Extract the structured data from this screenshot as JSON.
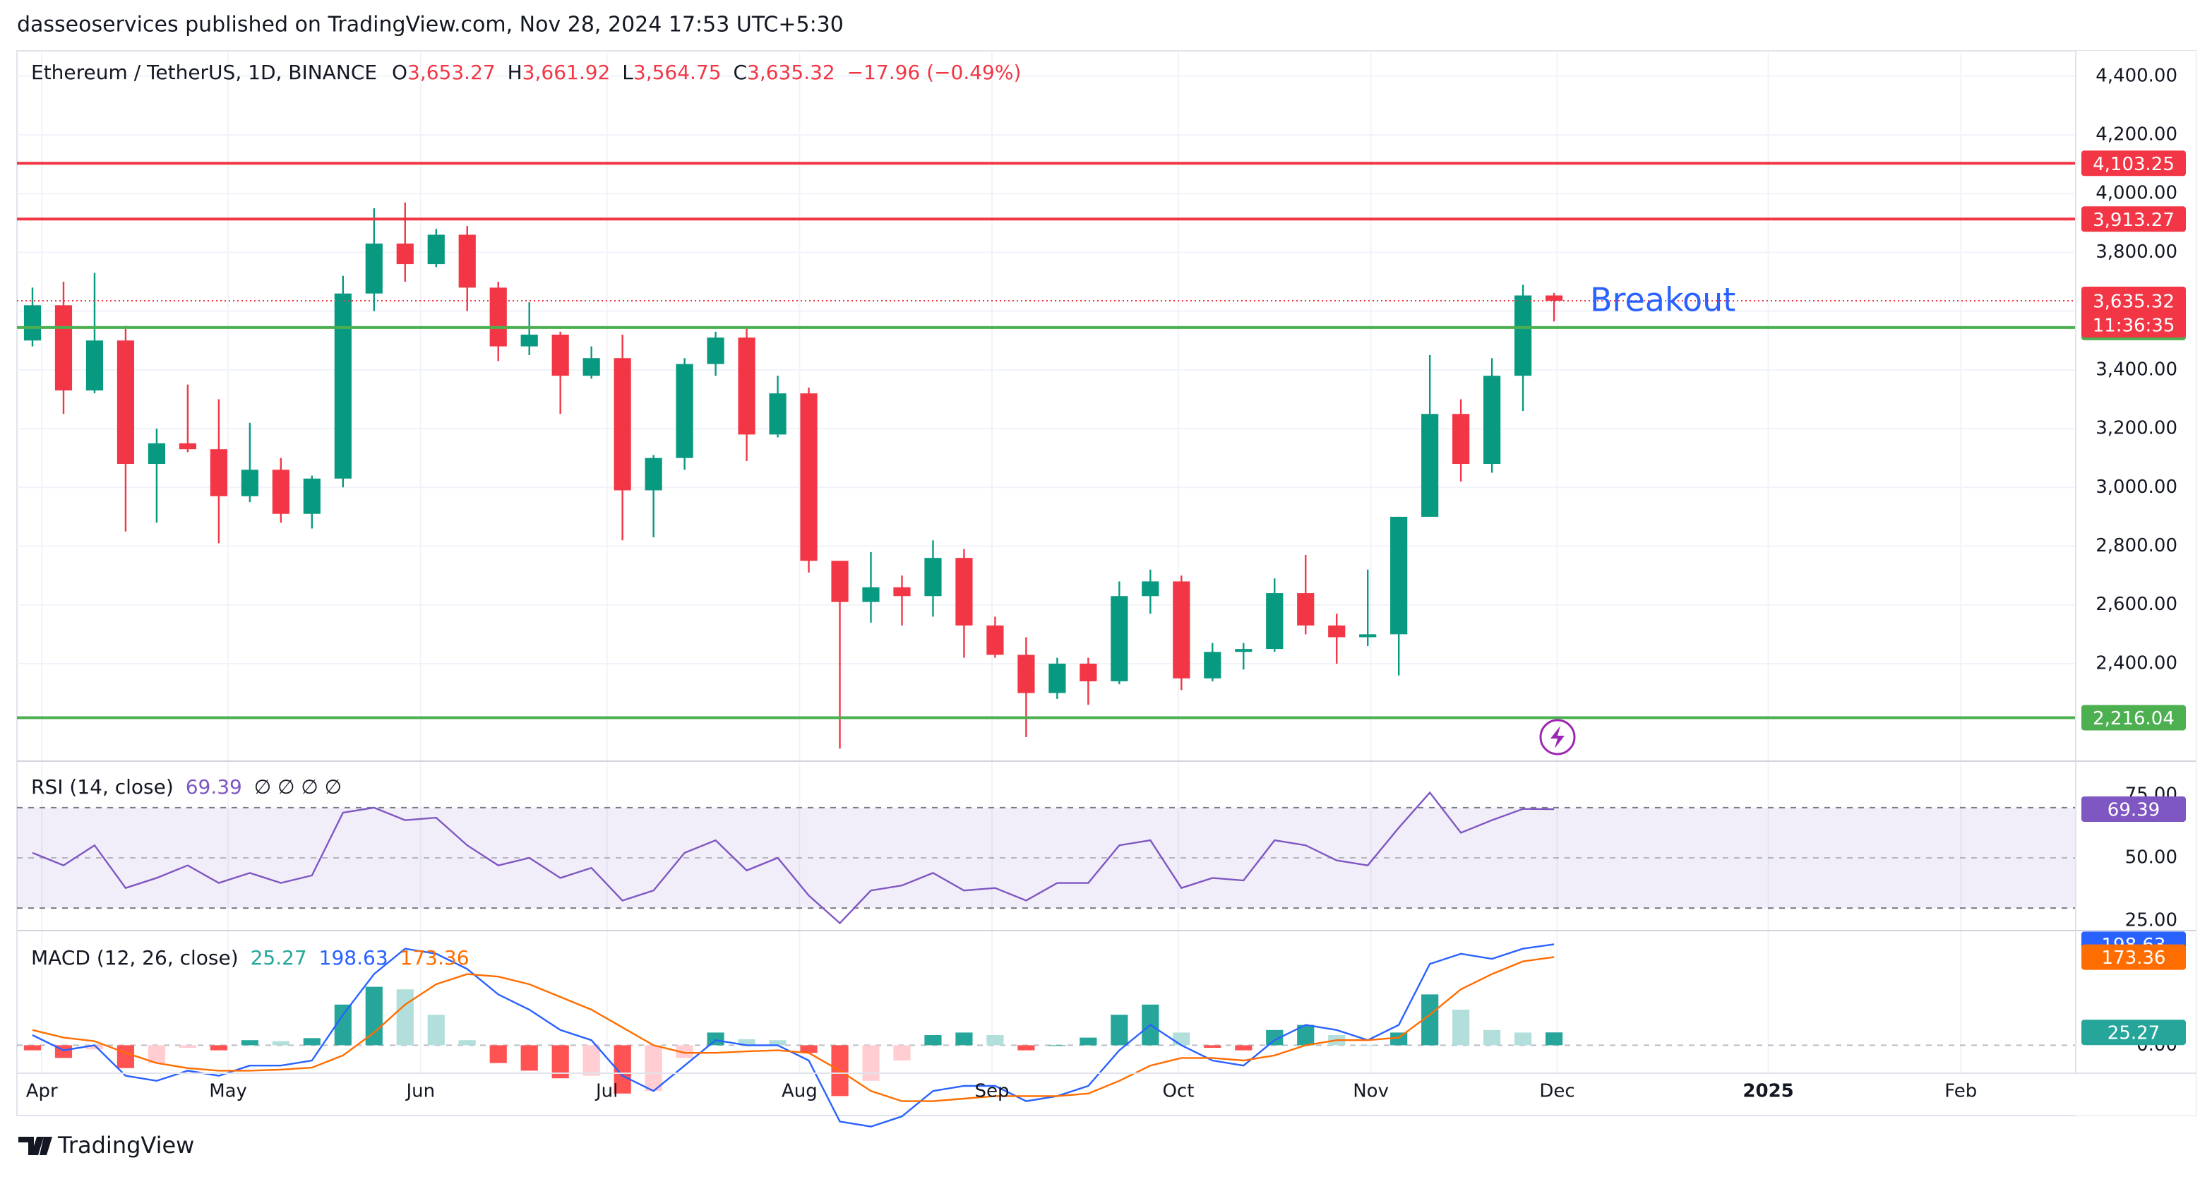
{
  "header": {
    "published": "dasseoservices published on TradingView.com, Nov 28, 2024 17:53 UTC+5:30",
    "symbol": "Ethereum / TetherUS, 1D, BINANCE",
    "ohlc": [
      {
        "letter": "O",
        "value": "3,653.27"
      },
      {
        "letter": "H",
        "value": "3,661.92"
      },
      {
        "letter": "L",
        "value": "3,564.75"
      },
      {
        "letter": "C",
        "value": "3,635.32"
      }
    ],
    "change": "−17.96 (−0.49%)"
  },
  "footer": {
    "brand": "TradingView"
  },
  "chart_data": [
    {
      "type": "candlestick",
      "up_color": "#089981",
      "down_color": "#f23645",
      "open": [
        3500,
        3620,
        3330,
        3500,
        3080,
        3150,
        3130,
        2970,
        3060,
        2910,
        3030,
        3660,
        3830,
        3760,
        3860,
        3680,
        3480,
        3520,
        3380,
        3440,
        2990,
        3100,
        3420,
        3510,
        3180,
        3320,
        2750,
        2610,
        2660,
        2630,
        2760,
        2530,
        2430,
        2300,
        2400,
        2340,
        2630,
        2680,
        2350,
        2440,
        2450,
        2640,
        2530,
        2490,
        2500,
        2900,
        3250,
        3080,
        3380,
        3653.27
      ],
      "high": [
        3680,
        3700,
        3730,
        3550,
        3200,
        3350,
        3300,
        3220,
        3100,
        3040,
        3720,
        3950,
        3970,
        3880,
        3890,
        3700,
        3630,
        3530,
        3480,
        3520,
        3110,
        3440,
        3530,
        3540,
        3380,
        3340,
        2750,
        2780,
        2700,
        2820,
        2790,
        2560,
        2490,
        2420,
        2420,
        2680,
        2720,
        2700,
        2470,
        2470,
        2690,
        2770,
        2570,
        2720,
        2900,
        3450,
        3300,
        3440,
        3690,
        3661.92
      ],
      "low": [
        3480,
        3250,
        3320,
        2850,
        2880,
        3120,
        2810,
        2950,
        2880,
        2860,
        3000,
        3600,
        3700,
        3750,
        3600,
        3430,
        3450,
        3250,
        3370,
        2820,
        2830,
        3060,
        3380,
        3090,
        3170,
        2710,
        2111,
        2540,
        2530,
        2560,
        2420,
        2420,
        2150,
        2280,
        2260,
        2330,
        2570,
        2310,
        2340,
        2380,
        2440,
        2500,
        2400,
        2460,
        2360,
        2900,
        3020,
        3050,
        3260,
        3564.75
      ],
      "close": [
        3620,
        3330,
        3500,
        3080,
        3150,
        3130,
        2970,
        3060,
        2910,
        3030,
        3660,
        3830,
        3760,
        3860,
        3680,
        3480,
        3520,
        3380,
        3440,
        2990,
        3100,
        3420,
        3510,
        3180,
        3320,
        2750,
        2610,
        2660,
        2630,
        2760,
        2530,
        2430,
        2300,
        2400,
        2340,
        2630,
        2680,
        2350,
        2440,
        2450,
        2640,
        2530,
        2490,
        2500,
        2900,
        3250,
        3080,
        3380,
        3653.27,
        3635.32
      ],
      "xlim": [
        0,
        66.3
      ],
      "xticks": [
        {
          "value": 0.8,
          "label": "Apr"
        },
        {
          "value": 6.8,
          "label": "May"
        },
        {
          "value": 13,
          "label": "Jun"
        },
        {
          "value": 19,
          "label": "Jul"
        },
        {
          "value": 25.2,
          "label": "Aug"
        },
        {
          "value": 31.4,
          "label": "Sep"
        },
        {
          "value": 37.4,
          "label": "Oct"
        },
        {
          "value": 43.6,
          "label": "Nov"
        },
        {
          "value": 49.6,
          "label": "Dec"
        },
        {
          "value": 56.4,
          "label": "2025"
        },
        {
          "value": 62.6,
          "label": "Feb"
        }
      ],
      "ylim": [
        2073,
        4486
      ],
      "yticks": [
        {
          "value": 2400,
          "label": "2,400.00"
        },
        {
          "value": 2600,
          "label": "2,600.00"
        },
        {
          "value": 2800,
          "label": "2,800.00"
        },
        {
          "value": 3000,
          "label": "3,000.00"
        },
        {
          "value": 3200,
          "label": "3,200.00"
        },
        {
          "value": 3400,
          "label": "3,400.00"
        },
        {
          "value": 3600,
          "label": "3,600.00"
        },
        {
          "value": 3800,
          "label": "3,800.00"
        },
        {
          "value": 4000,
          "label": "4,000.00"
        },
        {
          "value": 4200,
          "label": "4,200.00"
        },
        {
          "value": 4400,
          "label": "4,400.00"
        }
      ],
      "grid": true,
      "hlines": [
        {
          "value": 4103.25,
          "label": "4,103.25",
          "color": "#f23645"
        },
        {
          "value": 3913.27,
          "label": "3,913.27",
          "color": "#f23645"
        },
        {
          "value": 3544.13,
          "label": "3,544.13",
          "color": "#4caf50"
        },
        {
          "value": 2216.04,
          "label": "2,216.04",
          "color": "#4caf50"
        }
      ],
      "last_price": {
        "value": 3635.32,
        "label": "3,635.32",
        "color": "#f23645"
      },
      "countdown": "11:36:35",
      "annotation": {
        "text": "Breakout",
        "color": "#2962ff"
      }
    },
    {
      "type": "line",
      "title": "RSI (14, close)",
      "placeholders": "∅ ∅ ∅ ∅",
      "color": "#7e57c2",
      "values": [
        52,
        47,
        55,
        38,
        42,
        47,
        40,
        44,
        40,
        43,
        68,
        70,
        65,
        66,
        55,
        47,
        50,
        42,
        46,
        33,
        37,
        52,
        57,
        45,
        50,
        35,
        24,
        37,
        39,
        44,
        37,
        38,
        33,
        40,
        40,
        55,
        57,
        38,
        42,
        41,
        57,
        55,
        49,
        47,
        62,
        76,
        60,
        65,
        69.5,
        69.39
      ],
      "band": [
        30,
        70
      ],
      "ylim": [
        21.6,
        87.4
      ],
      "yticks": [
        {
          "value": 25,
          "label": "25.00"
        },
        {
          "value": 50,
          "label": "50.00"
        },
        {
          "value": 75,
          "label": "75.00"
        }
      ]
    },
    {
      "type": "macd",
      "title": "MACD (12, 26, close)",
      "histogram": {
        "colors": [
          "#26a69a",
          "#b2dfdb",
          "#ff5252",
          "#ffcdd2"
        ],
        "values": [
          -10,
          -25,
          -8,
          -45,
          -35,
          -5,
          -10,
          10,
          8,
          14,
          80,
          115,
          110,
          60,
          10,
          -35,
          -50,
          -65,
          -60,
          -95,
          -90,
          -25,
          25,
          12,
          10,
          -15,
          -100,
          -70,
          -30,
          20,
          25,
          20,
          -10,
          0,
          15,
          60,
          80,
          25,
          -5,
          -10,
          30,
          40,
          20,
          0,
          25,
          100,
          70,
          30,
          25,
          25.27
        ]
      },
      "macd": {
        "color": "#2962ff",
        "values": [
          20,
          -10,
          0,
          -60,
          -70,
          -50,
          -60,
          -40,
          -40,
          -30,
          60,
          140,
          190,
          180,
          150,
          100,
          70,
          30,
          10,
          -60,
          -90,
          -40,
          10,
          0,
          0,
          -30,
          -150,
          -160,
          -140,
          -90,
          -80,
          -80,
          -110,
          -100,
          -80,
          -10,
          40,
          0,
          -30,
          -40,
          10,
          40,
          30,
          10,
          40,
          160,
          180,
          170,
          190,
          198.63
        ]
      },
      "signal": {
        "color": "#ff6d00",
        "values": [
          30,
          15,
          8,
          -15,
          -35,
          -45,
          -50,
          -50,
          -48,
          -44,
          -20,
          25,
          80,
          120,
          140,
          135,
          120,
          95,
          70,
          35,
          0,
          -15,
          -15,
          -12,
          -10,
          -15,
          -50,
          -90,
          -110,
          -110,
          -105,
          -100,
          -100,
          -100,
          -95,
          -70,
          -40,
          -25,
          -25,
          -30,
          -20,
          0,
          10,
          10,
          15,
          60,
          110,
          140,
          165,
          173.36
        ]
      },
      "ylim": [
        -55,
        220
      ],
      "yticks": [
        {
          "value": 0,
          "label": "0.00"
        }
      ]
    }
  ]
}
